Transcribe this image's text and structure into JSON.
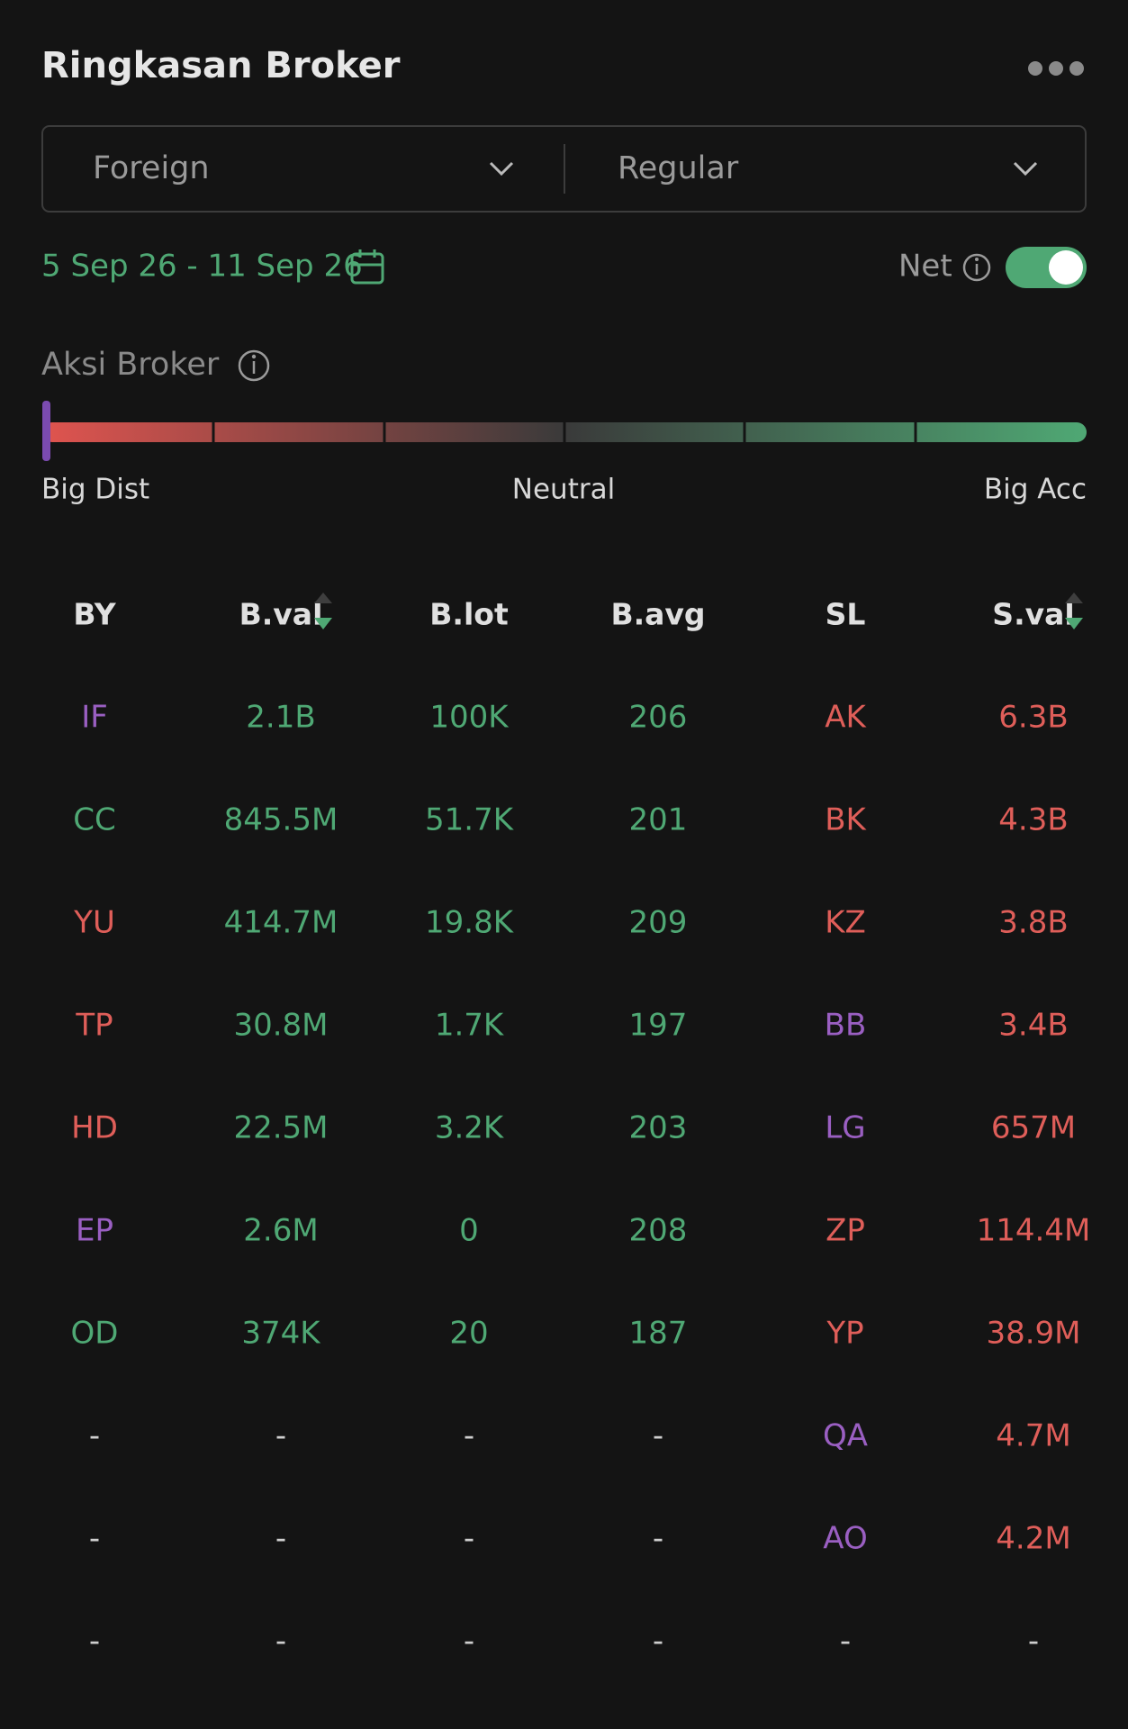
{
  "header": {
    "title": "Ringkasan Broker"
  },
  "filters": {
    "market": "Foreign",
    "board": "Regular"
  },
  "date_range": "5 Sep 26 - 11 Sep 26",
  "net": {
    "label": "Net",
    "enabled": true
  },
  "aksi_broker": {
    "title": "Aksi Broker",
    "scale_labels": [
      "Big Dist",
      "Neutral",
      "Big Acc"
    ]
  },
  "table": {
    "columns": [
      "BY",
      "B.val",
      "B.lot",
      "B.avg",
      "SL",
      "S.val"
    ],
    "rows": [
      [
        "IF",
        "2.1B",
        "100K",
        "206",
        "AK",
        "6.3B"
      ],
      [
        "CC",
        "845.5M",
        "51.7K",
        "201",
        "BK",
        "4.3B"
      ],
      [
        "YU",
        "414.7M",
        "19.8K",
        "209",
        "KZ",
        "3.8B"
      ],
      [
        "TP",
        "30.8M",
        "1.7K",
        "197",
        "BB",
        "3.4B"
      ],
      [
        "HD",
        "22.5M",
        "3.2K",
        "203",
        "LG",
        "657M"
      ],
      [
        "EP",
        "2.6M",
        "0",
        "208",
        "ZP",
        "114.4M"
      ],
      [
        "OD",
        "374K",
        "20",
        "187",
        "YP",
        "38.9M"
      ],
      [
        "-",
        "-",
        "-",
        "-",
        "QA",
        "4.7M"
      ],
      [
        "-",
        "-",
        "-",
        "-",
        "AO",
        "4.2M"
      ],
      [
        "-",
        "-",
        "-",
        "-",
        "-",
        "-"
      ]
    ],
    "colors": [
      [
        "purple",
        "green",
        "green",
        "green",
        "red",
        "red"
      ],
      [
        "green",
        "green",
        "green",
        "green",
        "red",
        "red"
      ],
      [
        "red",
        "green",
        "green",
        "green",
        "red",
        "red"
      ],
      [
        "red",
        "green",
        "green",
        "green",
        "purple",
        "red"
      ],
      [
        "red",
        "green",
        "green",
        "green",
        "purple",
        "red"
      ],
      [
        "purple",
        "green",
        "green",
        "green",
        "red",
        "red"
      ],
      [
        "green",
        "green",
        "green",
        "green",
        "red",
        "red"
      ],
      [
        "plain",
        "plain",
        "plain",
        "plain",
        "purple",
        "red"
      ],
      [
        "plain",
        "plain",
        "plain",
        "plain",
        "purple",
        "red"
      ],
      [
        "plain",
        "plain",
        "plain",
        "plain",
        "plain",
        "plain"
      ]
    ]
  }
}
